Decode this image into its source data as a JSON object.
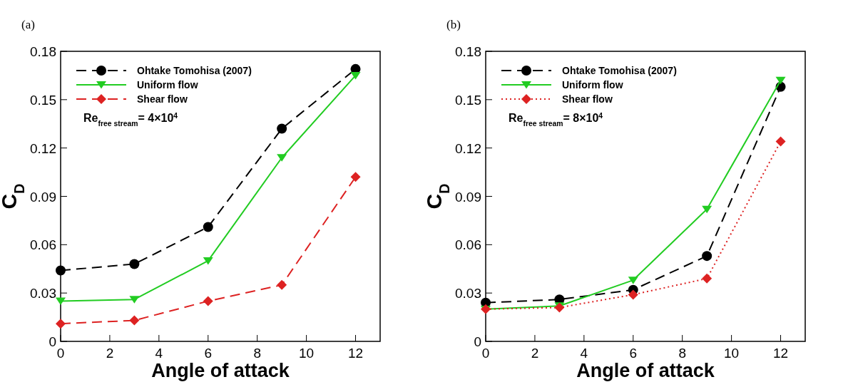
{
  "chart_data": [
    {
      "type": "line",
      "xlabel": "Angle of attack",
      "ylabel": "C$_{D}$",
      "x": [
        0,
        3,
        6,
        9,
        12
      ],
      "xlim": [
        0,
        13
      ],
      "xticks": [
        0,
        2,
        4,
        6,
        8,
        10,
        12
      ],
      "ylim": [
        0,
        0.18
      ],
      "yticks": [
        0,
        0.03,
        0.06,
        0.09,
        0.12,
        0.15,
        0.18
      ],
      "grid": false,
      "legend": "top left",
      "annotations": [
        "(a)",
        "Re$_{free stream}$= 4×10$^{4}$"
      ],
      "series": [
        {
          "name": "Ohtake Tomohisa (2007)",
          "color": "#000000",
          "marker": "circle",
          "line_style": "dashed",
          "values": [
            0.044,
            0.048,
            0.071,
            0.132,
            0.169
          ]
        },
        {
          "name": "Uniform flow",
          "color": "#22cc22",
          "marker": "triangle",
          "line_style": "solid",
          "values": [
            0.025,
            0.026,
            0.05,
            0.114,
            0.165
          ]
        },
        {
          "name": "Shear flow",
          "color": "#dd2222",
          "marker": "diamond",
          "line_style": "dashed",
          "values": [
            0.011,
            0.013,
            0.025,
            0.035,
            0.102
          ]
        }
      ]
    },
    {
      "type": "line",
      "xlabel": "Angle of attack",
      "ylabel": "C$_{D}$",
      "x": [
        0,
        3,
        6,
        9,
        12
      ],
      "xlim": [
        0,
        13
      ],
      "xticks": [
        0,
        2,
        4,
        6,
        8,
        10,
        12
      ],
      "ylim": [
        0,
        0.18
      ],
      "yticks": [
        0,
        0.03,
        0.06,
        0.09,
        0.12,
        0.15,
        0.18
      ],
      "grid": false,
      "legend": "top left",
      "annotations": [
        "(b)",
        "Re$_{free stream}$= 8×10$^{4}$"
      ],
      "series": [
        {
          "name": "Ohtake Tomohisa (2007)",
          "color": "#000000",
          "marker": "circle",
          "line_style": "dashed",
          "values": [
            0.024,
            0.026,
            0.032,
            0.053,
            0.158
          ]
        },
        {
          "name": "Uniform flow",
          "color": "#22cc22",
          "marker": "triangle",
          "line_style": "solid",
          "values": [
            0.02,
            0.022,
            0.038,
            0.082,
            0.162
          ]
        },
        {
          "name": "Shear flow",
          "color": "#dd2222",
          "marker": "diamond",
          "line_style": "dotted",
          "values": [
            0.02,
            0.021,
            0.029,
            0.039,
            0.124
          ]
        }
      ]
    }
  ]
}
